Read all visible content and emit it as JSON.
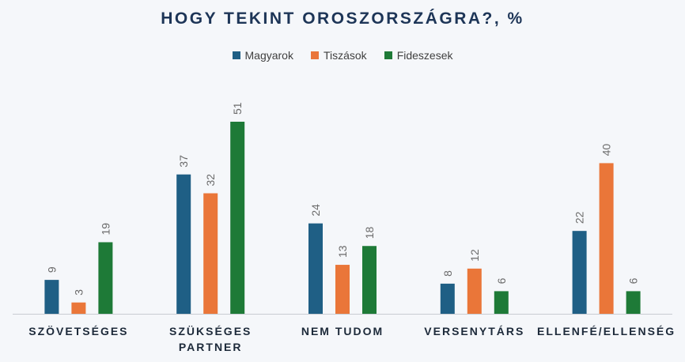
{
  "chart_data": {
    "type": "bar",
    "title": "HOGY TEKINT OROSZORSZÁGRA?, %",
    "categories": [
      [
        "SZÖVETSÉGES"
      ],
      [
        "SZÜKSÉGES",
        "PARTNER"
      ],
      [
        "NEM TUDOM"
      ],
      [
        "VERSENYTÁRS"
      ],
      [
        "ELLENFÉ/ELLENSÉG"
      ]
    ],
    "series": [
      {
        "name": "Magyarok",
        "color": "#1f5f85",
        "values": [
          9,
          37,
          24,
          8,
          22
        ]
      },
      {
        "name": "Tiszások",
        "color": "#ea7639",
        "values": [
          3,
          32,
          13,
          12,
          40
        ]
      },
      {
        "name": "Fideszesek",
        "color": "#1e7a37",
        "values": [
          19,
          51,
          18,
          6,
          6
        ]
      }
    ],
    "ylim": [
      0,
      60
    ],
    "grid": false,
    "legend_position": "top",
    "data_labels": true
  }
}
